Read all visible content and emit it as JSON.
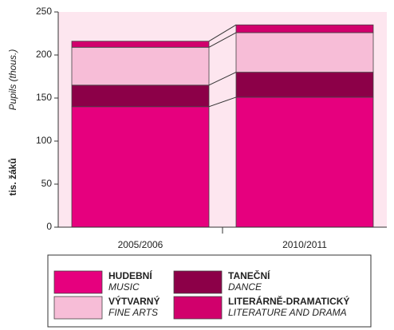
{
  "chart_data": {
    "type": "stacked_bar",
    "y_label": "tis. žáků",
    "y_label_en": "Pupils (thous.)",
    "categories": [
      "2005/2006",
      "2010/2011"
    ],
    "series": [
      {
        "name": "HUDEBNÍ",
        "name_en": "MUSIC",
        "color": "#e6007e",
        "values": [
          140,
          151
        ]
      },
      {
        "name": "TANEČNÍ",
        "name_en": "DANCE",
        "color": "#8c0048",
        "values": [
          25,
          29
        ]
      },
      {
        "name": "VÝTVARNÝ",
        "name_en": "FINE ARTS",
        "color": "#f7bdd7",
        "values": [
          44,
          46
        ]
      },
      {
        "name": "LITERÁRNĚ-DRAMATICKÝ",
        "name_en": "LITERATURE AND DRAMA",
        "color": "#d1006c",
        "values": [
          7,
          9
        ]
      }
    ],
    "ylim": [
      0,
      250
    ],
    "yticks": [
      0,
      50,
      100,
      150,
      200,
      250
    ],
    "background": "#fde6ef"
  }
}
